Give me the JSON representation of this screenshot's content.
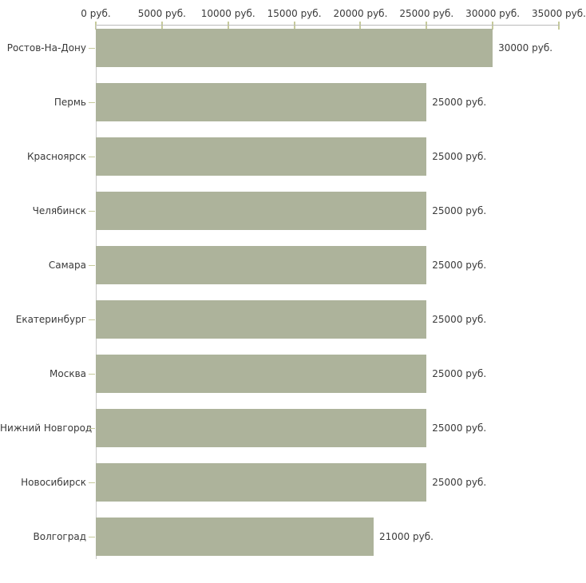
{
  "chart_data": {
    "type": "bar",
    "orientation": "horizontal",
    "title": "",
    "xlabel": "",
    "ylabel": "",
    "categories": [
      "Ростов-На-Дону",
      "Пермь",
      "Красноярск",
      "Челябинск",
      "Самара",
      "Екатеринбург",
      "Москва",
      "Нижний Новгород",
      "Новосибирск",
      "Волгоград"
    ],
    "values": [
      30000,
      25000,
      25000,
      25000,
      25000,
      25000,
      25000,
      25000,
      25000,
      21000
    ],
    "value_labels": [
      "30000 руб.",
      "25000 руб.",
      "25000 руб.",
      "25000 руб.",
      "25000 руб.",
      "25000 руб.",
      "25000 руб.",
      "25000 руб.",
      "25000 руб.",
      "21000 руб."
    ],
    "x_axis": {
      "tick_values": [
        0,
        5000,
        10000,
        15000,
        20000,
        25000,
        30000,
        35000
      ],
      "tick_labels": [
        "0 руб.",
        "5000 руб.",
        "10000 руб.",
        "15000 руб.",
        "20000 руб.",
        "25000 руб.",
        "30000 руб.",
        "35000 руб."
      ],
      "min": 0,
      "max": 35000
    },
    "grid": false,
    "legend": false,
    "colors": {
      "bar": "#adb39b",
      "axis_line": "#b9b9b9",
      "tick_mark": "#c6ca9b",
      "text": "#3a3a3a",
      "background": "#ffffff"
    }
  }
}
